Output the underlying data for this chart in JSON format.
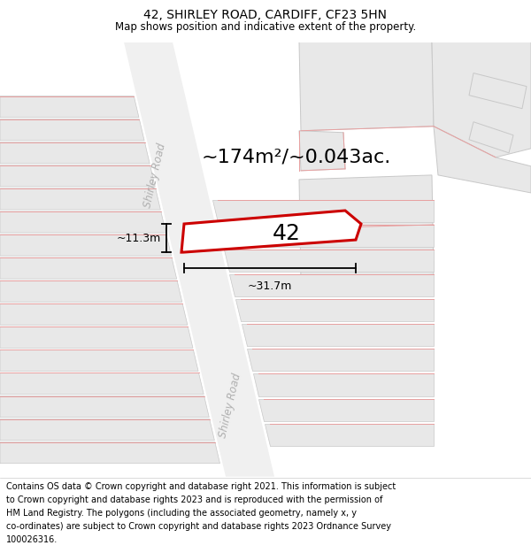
{
  "title": "42, SHIRLEY ROAD, CARDIFF, CF23 5HN",
  "subtitle": "Map shows position and indicative extent of the property.",
  "footer": "Contains OS data © Crown copyright and database right 2021. This information is subject to Crown copyright and database rights 2023 and is reproduced with the permission of HM Land Registry. The polygons (including the associated geometry, namely x, y co-ordinates) are subject to Crown copyright and database rights 2023 Ordnance Survey 100026316.",
  "area_text": "~174m²/~0.043ac.",
  "label": "42",
  "dim_width": "~31.7m",
  "dim_height": "~11.3m",
  "map_bg": "#f7f7f7",
  "building_fill": "#e8e8e8",
  "building_outline": "#c8c8c8",
  "road_fill": "#ffffff",
  "road_label_color": "#b0b0b0",
  "red_line_color": "#e8a0a0",
  "highlight_fill": "#ffffff",
  "highlight_outline": "#cc0000",
  "title_fontsize": 10,
  "subtitle_fontsize": 8.5,
  "footer_fontsize": 7.0,
  "area_fontsize": 16,
  "label_fontsize": 18,
  "dim_fontsize": 9
}
